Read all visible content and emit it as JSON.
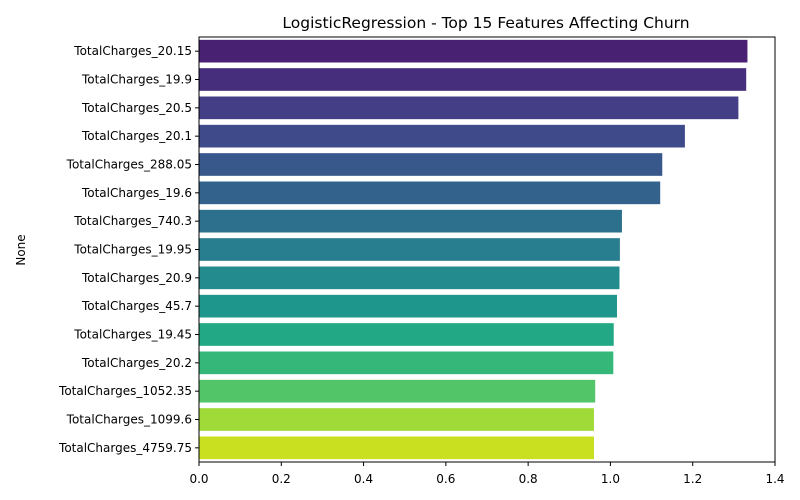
{
  "chart_data": {
    "type": "bar",
    "orientation": "horizontal",
    "title": "LogisticRegression - Top 15 Features Affecting Churn",
    "xlabel": "",
    "ylabel": "None",
    "xlim": [
      0,
      1.4
    ],
    "xticks": [
      0.0,
      0.2,
      0.4,
      0.6,
      0.8,
      1.0,
      1.2,
      1.4
    ],
    "xtick_labels": [
      "0.0",
      "0.2",
      "0.4",
      "0.6",
      "0.8",
      "1.0",
      "1.2",
      "1.4"
    ],
    "grid": false,
    "categories": [
      "TotalCharges_20.15",
      "TotalCharges_19.9",
      "TotalCharges_20.5",
      "TotalCharges_20.1",
      "TotalCharges_288.05",
      "TotalCharges_19.6",
      "TotalCharges_740.3",
      "TotalCharges_19.95",
      "TotalCharges_20.9",
      "TotalCharges_45.7",
      "TotalCharges_19.45",
      "TotalCharges_20.2",
      "TotalCharges_1052.35",
      "TotalCharges_1099.6",
      "TotalCharges_4759.75"
    ],
    "values": [
      1.333,
      1.33,
      1.311,
      1.181,
      1.126,
      1.121,
      1.028,
      1.023,
      1.022,
      1.016,
      1.008,
      1.007,
      0.963,
      0.96,
      0.96
    ],
    "colors": [
      "#482173",
      "#472e7c",
      "#433e85",
      "#3e4a89",
      "#38588c",
      "#33638d",
      "#2d708e",
      "#287d8e",
      "#238a8d",
      "#1f968b",
      "#22a884",
      "#35b779",
      "#52c569",
      "#a0da39",
      "#c8e020"
    ]
  }
}
